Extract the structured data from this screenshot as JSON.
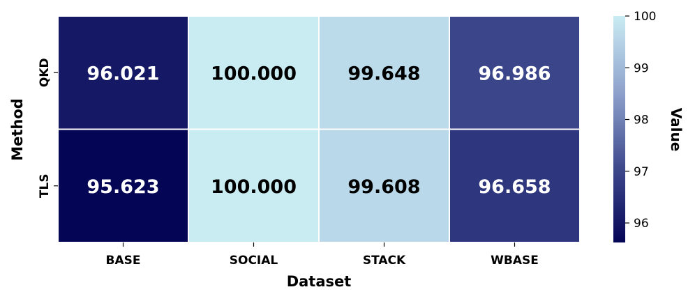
{
  "chart_data": {
    "type": "heatmap",
    "title": "",
    "xlabel": "Dataset",
    "ylabel": "Method",
    "x_categories": [
      "BASE",
      "SOCIAL",
      "STACK",
      "WBASE"
    ],
    "y_categories": [
      "QKD",
      "TLS"
    ],
    "values": [
      [
        96.021,
        100.0,
        99.648,
        96.986
      ],
      [
        95.623,
        100.0,
        99.608,
        96.658
      ]
    ],
    "value_labels": [
      [
        "96.021",
        "100.000",
        "99.648",
        "96.986"
      ],
      [
        "95.623",
        "100.000",
        "99.608",
        "96.658"
      ]
    ],
    "colorbar": {
      "label": "Value",
      "range": [
        95.623,
        100.0
      ],
      "ticks": [
        96,
        97,
        98,
        99,
        100
      ],
      "tick_labels": [
        "96",
        "97",
        "98",
        "99",
        "100"
      ],
      "colors": [
        "#050556",
        "#3f4a8d",
        "#8ea2cc",
        "#c9ecf3"
      ]
    },
    "grid": false,
    "legend": "right"
  }
}
